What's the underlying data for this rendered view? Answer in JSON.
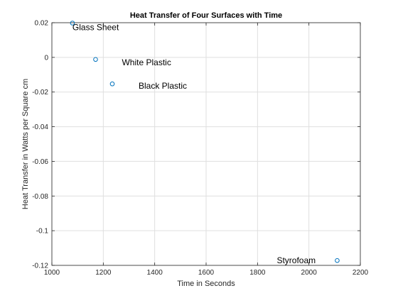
{
  "chart_data": {
    "type": "scatter",
    "title": "Heat Transfer of Four Surfaces with Time",
    "xlabel": "Time in Seconds",
    "ylabel": "Heat Transfer in Watts per Square cm",
    "xlim": [
      1000,
      2200
    ],
    "ylim": [
      -0.12,
      0.02
    ],
    "xticks": [
      1000,
      1200,
      1400,
      1600,
      1800,
      2000,
      2200
    ],
    "xtick_labels": [
      "1000",
      "1200",
      "1400",
      "1600",
      "1800",
      "2000",
      "2200"
    ],
    "yticks": [
      0.02,
      0,
      -0.02,
      -0.04,
      -0.06,
      -0.08,
      -0.1,
      -0.12
    ],
    "ytick_labels": [
      "0.02",
      "0",
      "-0.02",
      "-0.04",
      "-0.06",
      "-0.08",
      "-0.1",
      "-0.12"
    ],
    "grid": true,
    "marker_color": "#0072bd",
    "points": [
      {
        "x": 1080,
        "y": 0.0198,
        "label": "Glass Sheet"
      },
      {
        "x": 1170,
        "y": -0.0012,
        "label": "White Plastic"
      },
      {
        "x": 1235,
        "y": -0.0153,
        "label": "Black Plastic"
      },
      {
        "x": 2110,
        "y": -0.1172,
        "label": "Styrofoam"
      }
    ]
  }
}
